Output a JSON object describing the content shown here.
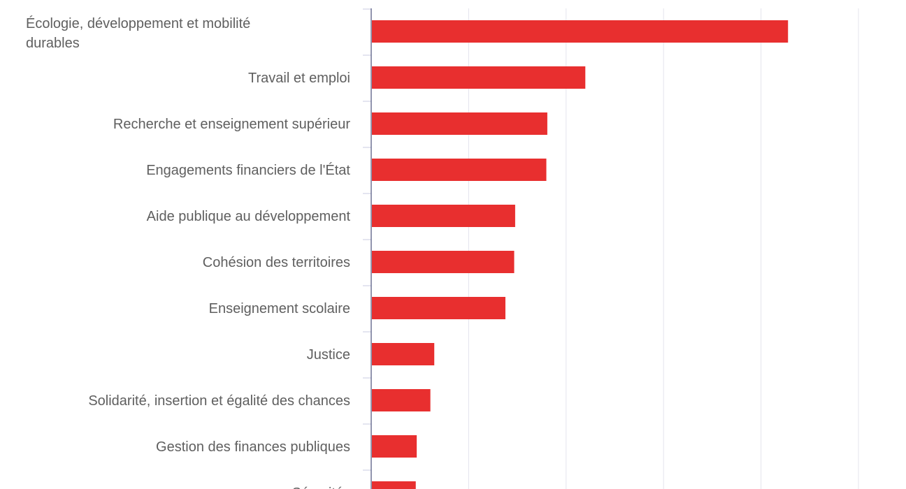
{
  "chart_data": {
    "type": "bar",
    "orientation": "horizontal",
    "categories": [
      "Écologie, développement et mobilité durables",
      "Travail et emploi",
      "Recherche et enseignement supérieur",
      "Engagements financiers de l'État",
      "Aide publique au développement",
      "Cohésion des territoires",
      "Enseignement scolaire",
      "Justice",
      "Solidarité, insertion et égalité des chances",
      "Gestion des finances publiques",
      "Sécurités"
    ],
    "values": [
      4.27,
      2.19,
      1.8,
      1.79,
      1.47,
      1.46,
      1.37,
      0.64,
      0.6,
      0.46,
      0.45
    ],
    "xlim": [
      0,
      5
    ],
    "grid": true,
    "bar_color": "#e82f2f",
    "title": "",
    "xlabel": "",
    "ylabel": ""
  }
}
